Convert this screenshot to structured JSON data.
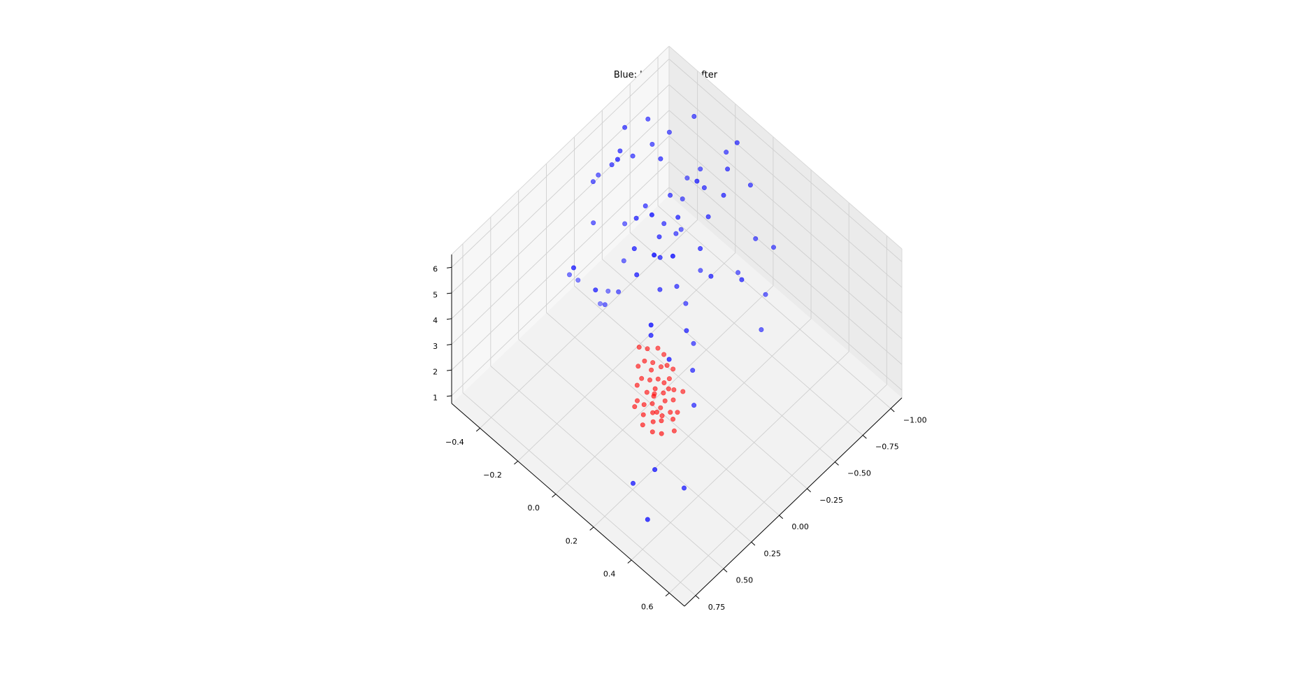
{
  "chart_data": {
    "type": "scatter3d",
    "title": "Blue: before; red: after",
    "grid": true,
    "axes": {
      "x": {
        "ticks": [
          -1.0,
          -0.75,
          -0.5,
          -0.25,
          0.0,
          0.25,
          0.5,
          0.75
        ],
        "tick_labels": [
          "−1.00",
          "−0.75",
          "−0.50",
          "−0.25",
          "0.00",
          "0.25",
          "0.50",
          "0.75"
        ],
        "lim": [
          -1.1,
          0.85
        ]
      },
      "y": {
        "ticks": [
          -0.4,
          -0.2,
          0.0,
          0.2,
          0.4,
          0.6
        ],
        "tick_labels": [
          "−0.4",
          "−0.2",
          "0.0",
          "0.2",
          "0.4",
          "0.6"
        ],
        "lim": [
          -0.55,
          0.68
        ]
      },
      "z": {
        "ticks": [
          1,
          2,
          3,
          4,
          5,
          6
        ],
        "tick_labels": [
          "1",
          "2",
          "3",
          "4",
          "5",
          "6"
        ],
        "lim": [
          0.7,
          6.5
        ]
      }
    },
    "series": [
      {
        "color": "#0000ff",
        "points": [
          [
            0.31,
            0.36,
            1.0
          ],
          [
            0.53,
            0.22,
            1.2
          ],
          [
            0.62,
            0.35,
            1.0
          ],
          [
            0.42,
            0.27,
            1.6
          ],
          [
            0.02,
            0.11,
            3.2
          ],
          [
            -0.14,
            0.14,
            2.3
          ],
          [
            -0.05,
            0.2,
            1.7
          ],
          [
            -0.25,
            0.08,
            2.5
          ],
          [
            -0.17,
            0.09,
            3.4
          ],
          [
            0.03,
            0.02,
            3.6
          ],
          [
            -0.35,
            -0.02,
            3.0
          ],
          [
            -0.48,
            -0.02,
            4.6
          ],
          [
            -0.55,
            -0.06,
            3.2
          ],
          [
            -0.32,
            -0.05,
            3.6
          ],
          [
            -0.22,
            -0.08,
            3.7
          ],
          [
            -0.29,
            -0.12,
            4.4
          ],
          [
            -0.35,
            -0.16,
            4.7
          ],
          [
            -0.5,
            -0.16,
            4.2
          ],
          [
            -0.58,
            -0.18,
            3.9
          ],
          [
            -0.46,
            -0.2,
            4.5
          ],
          [
            -0.66,
            -0.22,
            4.5
          ],
          [
            -0.77,
            -0.26,
            4.6
          ],
          [
            -0.43,
            -0.28,
            4.8
          ],
          [
            -0.62,
            -0.06,
            5.0
          ],
          [
            -0.45,
            -0.12,
            5.3
          ],
          [
            -0.55,
            -0.22,
            5.1
          ],
          [
            -0.72,
            -0.14,
            5.2
          ],
          [
            -0.05,
            -0.27,
            2.6
          ],
          [
            -0.18,
            -0.33,
            2.2
          ],
          [
            -0.16,
            -0.36,
            1.6
          ],
          [
            -0.08,
            -0.43,
            2.4
          ],
          [
            -0.02,
            -0.44,
            2.8
          ],
          [
            -0.12,
            -0.24,
            3.0
          ],
          [
            -0.27,
            -0.3,
            3.2
          ],
          [
            -0.38,
            -0.36,
            3.8
          ],
          [
            -0.2,
            -0.42,
            4.2
          ],
          [
            -0.3,
            -0.48,
            5.0
          ],
          [
            -0.4,
            -0.44,
            5.5
          ],
          [
            -0.52,
            -0.4,
            5.6
          ],
          [
            -0.38,
            -0.5,
            4.8
          ],
          [
            -0.66,
            -0.38,
            5.6
          ],
          [
            -0.78,
            -0.36,
            5.7
          ],
          [
            -0.6,
            -0.3,
            5.8
          ],
          [
            -0.44,
            -0.42,
            6.0
          ],
          [
            -0.55,
            -0.46,
            6.2
          ],
          [
            -0.69,
            -0.42,
            6.2
          ],
          [
            -0.86,
            -0.1,
            5.6
          ],
          [
            -0.93,
            -0.02,
            5.2
          ],
          [
            -0.9,
            -0.3,
            6.2
          ],
          [
            -0.62,
            -0.12,
            6.0
          ],
          [
            -0.74,
            -0.05,
            5.4
          ],
          [
            -0.82,
            -0.22,
            5.0
          ],
          [
            -0.95,
            -0.16,
            5.5
          ],
          [
            -0.28,
            -0.24,
            5.2
          ],
          [
            -0.16,
            -0.18,
            4.9
          ],
          [
            -0.08,
            -0.12,
            4.6
          ],
          [
            -0.84,
            0.06,
            4.0
          ],
          [
            -0.9,
            0.12,
            3.8
          ],
          [
            -0.7,
            0.05,
            3.2
          ],
          [
            -0.44,
            0.06,
            4.2
          ],
          [
            -0.58,
            0.14,
            4.0
          ],
          [
            -0.1,
            -0.04,
            5.8
          ],
          [
            -0.2,
            0.0,
            5.6
          ],
          [
            0.12,
            -0.22,
            4.2
          ],
          [
            0.18,
            -0.3,
            4.8
          ],
          [
            -0.98,
            -0.12,
            6.0
          ],
          [
            -0.35,
            -0.38,
            6.3
          ],
          [
            -0.25,
            -0.14,
            6.1
          ],
          [
            0.08,
            0.05,
            4.4
          ],
          [
            -0.62,
            0.22,
            2.4
          ],
          [
            -0.76,
            0.16,
            2.8
          ]
        ]
      },
      {
        "color": "#ff0000",
        "points": [
          [
            0.05,
            0.05,
            1.6
          ],
          [
            0.08,
            0.1,
            1.5
          ],
          [
            0.1,
            0.12,
            1.4
          ],
          [
            0.06,
            0.14,
            1.5
          ],
          [
            0.02,
            0.08,
            1.7
          ],
          [
            -0.02,
            0.06,
            1.8
          ],
          [
            0.12,
            0.08,
            1.7
          ],
          [
            0.15,
            0.1,
            1.6
          ],
          [
            0.0,
            0.12,
            1.6
          ],
          [
            0.04,
            0.02,
            1.9
          ],
          [
            -0.04,
            0.1,
            1.7
          ],
          [
            0.1,
            0.04,
            1.8
          ],
          [
            0.14,
            0.14,
            1.5
          ],
          [
            0.18,
            0.12,
            1.5
          ],
          [
            0.16,
            0.06,
            1.7
          ],
          [
            0.08,
            0.0,
            2.0
          ],
          [
            -0.06,
            0.02,
            2.0
          ],
          [
            -0.02,
            0.0,
            2.2
          ],
          [
            0.02,
            -0.02,
            2.3
          ],
          [
            -0.08,
            0.04,
            2.1
          ],
          [
            0.06,
            0.06,
            1.9
          ],
          [
            0.12,
            0.0,
            1.9
          ],
          [
            -0.1,
            0.06,
            2.0
          ],
          [
            0.0,
            0.04,
            1.9
          ],
          [
            0.04,
            0.1,
            1.6
          ],
          [
            0.2,
            0.08,
            1.6
          ],
          [
            0.22,
            0.14,
            1.4
          ],
          [
            0.24,
            0.1,
            1.5
          ],
          [
            0.19,
            0.17,
            1.4
          ],
          [
            -0.04,
            -0.04,
            2.4
          ],
          [
            -0.1,
            -0.02,
            2.3
          ],
          [
            0.0,
            -0.06,
            2.5
          ],
          [
            0.07,
            0.16,
            1.4
          ],
          [
            0.11,
            0.19,
            1.3
          ],
          [
            -0.07,
            0.13,
            1.7
          ],
          [
            0.03,
            0.16,
            1.5
          ],
          [
            0.13,
            0.11,
            1.6
          ],
          [
            -0.01,
            0.09,
            1.8
          ],
          [
            0.09,
            0.07,
            1.8
          ],
          [
            0.17,
            0.03,
            1.7
          ],
          [
            -0.05,
            0.07,
            1.9
          ],
          [
            0.01,
            0.01,
            2.1
          ],
          [
            0.21,
            0.04,
            1.7
          ],
          [
            -0.12,
            0.0,
            2.1
          ],
          [
            0.06,
            -0.03,
            2.2
          ]
        ]
      }
    ]
  }
}
